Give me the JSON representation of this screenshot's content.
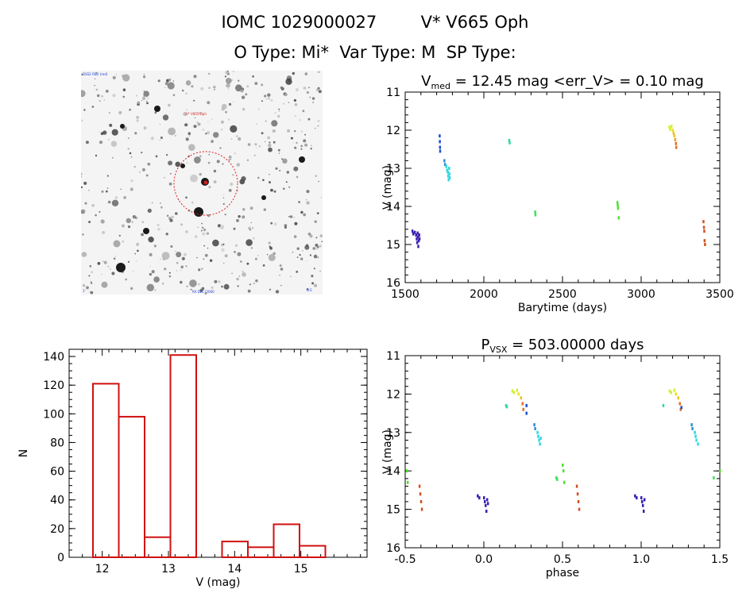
{
  "header": {
    "title_id": "IOMC 1029000027",
    "title_name": "V* V665 Oph",
    "subtitle": "O Type: Mi*  Var Type: M  SP Type:"
  },
  "image_panel": {
    "label_top_left": "DSS2 RED (red)",
    "label_marker": "V* V665 Oph",
    "label_bottom_left": "1'",
    "label_bottom_mid": "RA DEC J2000",
    "label_bottom_right": "N E"
  },
  "chart_data": [
    {
      "id": "lightcurve",
      "type": "scatter",
      "title": "V_med = 12.45 mag <err_V> = 0.10 mag",
      "title_parts": {
        "prefix": "V",
        "sub": "med",
        "rest": " = 12.45 mag <err_V> = 0.10 mag"
      },
      "xlabel": "Barytime (days)",
      "ylabel": "V (mag)",
      "xlim": [
        1500,
        3500
      ],
      "ylim": [
        16,
        11
      ],
      "xticks": [
        1500,
        2000,
        2500,
        3000,
        3500
      ],
      "yticks": [
        11,
        12,
        13,
        14,
        15,
        16
      ],
      "points": [
        {
          "x": 1545,
          "y": 14.65,
          "color": "#3a1fb0"
        },
        {
          "x": 1550,
          "y": 14.72,
          "color": "#3a1fb0"
        },
        {
          "x": 1560,
          "y": 14.68,
          "color": "#3a1fb0"
        },
        {
          "x": 1568,
          "y": 14.75,
          "color": "#3a1fb0"
        },
        {
          "x": 1572,
          "y": 14.85,
          "color": "#3a1fb0"
        },
        {
          "x": 1575,
          "y": 14.95,
          "color": "#3a1fb0"
        },
        {
          "x": 1578,
          "y": 14.7,
          "color": "#3a1fb0"
        },
        {
          "x": 1580,
          "y": 14.8,
          "color": "#3a1fb0"
        },
        {
          "x": 1582,
          "y": 15.05,
          "color": "#3a1fb0"
        },
        {
          "x": 1585,
          "y": 14.9,
          "color": "#3a1fb0"
        },
        {
          "x": 1588,
          "y": 14.75,
          "color": "#3a1fb0"
        },
        {
          "x": 1590,
          "y": 14.85,
          "color": "#3a1fb0"
        },
        {
          "x": 1718,
          "y": 12.15,
          "color": "#1a4fd0"
        },
        {
          "x": 1719,
          "y": 12.3,
          "color": "#1a4fd0"
        },
        {
          "x": 1720,
          "y": 12.45,
          "color": "#1a4fd0"
        },
        {
          "x": 1721,
          "y": 12.55,
          "color": "#1a4fd0"
        },
        {
          "x": 1748,
          "y": 12.8,
          "color": "#2c8fd0"
        },
        {
          "x": 1752,
          "y": 12.9,
          "color": "#2c8fd0"
        },
        {
          "x": 1760,
          "y": 12.95,
          "color": "#30d8e0"
        },
        {
          "x": 1765,
          "y": 13.05,
          "color": "#30d8e0"
        },
        {
          "x": 1770,
          "y": 13.1,
          "color": "#30d8e0"
        },
        {
          "x": 1772,
          "y": 13.2,
          "color": "#30d8e0"
        },
        {
          "x": 1775,
          "y": 13.3,
          "color": "#30d8e0"
        },
        {
          "x": 1778,
          "y": 13.0,
          "color": "#30d8e0"
        },
        {
          "x": 1780,
          "y": 13.15,
          "color": "#30d8e0"
        },
        {
          "x": 1782,
          "y": 13.25,
          "color": "#30d8e0"
        },
        {
          "x": 2160,
          "y": 12.27,
          "color": "#30d8a0"
        },
        {
          "x": 2163,
          "y": 12.33,
          "color": "#30d8a0"
        },
        {
          "x": 2325,
          "y": 14.15,
          "color": "#40e060"
        },
        {
          "x": 2327,
          "y": 14.22,
          "color": "#40e060"
        },
        {
          "x": 2848,
          "y": 13.9,
          "color": "#50e030"
        },
        {
          "x": 2850,
          "y": 13.98,
          "color": "#50e030"
        },
        {
          "x": 2852,
          "y": 14.05,
          "color": "#50e030"
        },
        {
          "x": 2856,
          "y": 14.3,
          "color": "#50e030"
        },
        {
          "x": 3178,
          "y": 11.92,
          "color": "#d0f030"
        },
        {
          "x": 3184,
          "y": 11.98,
          "color": "#d0f030"
        },
        {
          "x": 3192,
          "y": 11.9,
          "color": "#d0f030"
        },
        {
          "x": 3200,
          "y": 12.0,
          "color": "#e8e020"
        },
        {
          "x": 3205,
          "y": 12.08,
          "color": "#f0c020"
        },
        {
          "x": 3210,
          "y": 12.15,
          "color": "#f0c020"
        },
        {
          "x": 3215,
          "y": 12.25,
          "color": "#f0a020"
        },
        {
          "x": 3220,
          "y": 12.35,
          "color": "#e07020"
        },
        {
          "x": 3222,
          "y": 12.45,
          "color": "#e07020"
        },
        {
          "x": 3395,
          "y": 14.4,
          "color": "#d05020"
        },
        {
          "x": 3398,
          "y": 14.55,
          "color": "#d05020"
        },
        {
          "x": 3400,
          "y": 14.65,
          "color": "#d05020"
        },
        {
          "x": 3402,
          "y": 14.9,
          "color": "#d05020"
        },
        {
          "x": 3405,
          "y": 15.0,
          "color": "#d05020"
        }
      ]
    },
    {
      "id": "phased",
      "type": "scatter",
      "title": "P_VSX = 503.00000 days",
      "title_parts": {
        "prefix": "P",
        "sub": "VSX",
        "rest": " = 503.00000 days"
      },
      "xlabel": "phase",
      "ylabel": "V (mag)",
      "xlim": [
        -0.5,
        1.5
      ],
      "ylim": [
        16,
        11
      ],
      "xticks": [
        -0.5,
        0.0,
        0.5,
        1.0,
        1.5
      ],
      "ytick_labels": [
        "11",
        "12",
        "13",
        "14",
        "15",
        "16"
      ],
      "xtick_labels": [
        "-0.5",
        "0.0",
        "0.5",
        "1.0",
        "1.5"
      ],
      "yticks": [
        11,
        12,
        13,
        14,
        15,
        16
      ],
      "points": [
        {
          "x": -0.04,
          "y": 14.65,
          "color": "#3a1fb0"
        },
        {
          "x": -0.03,
          "y": 14.7,
          "color": "#3a1fb0"
        },
        {
          "x": 0.0,
          "y": 14.7,
          "color": "#3a1fb0"
        },
        {
          "x": 0.005,
          "y": 14.8,
          "color": "#3a1fb0"
        },
        {
          "x": 0.01,
          "y": 14.9,
          "color": "#3a1fb0"
        },
        {
          "x": 0.015,
          "y": 15.05,
          "color": "#3a1fb0"
        },
        {
          "x": 0.02,
          "y": 14.75,
          "color": "#3a1fb0"
        },
        {
          "x": 0.025,
          "y": 14.85,
          "color": "#3a1fb0"
        },
        {
          "x": 0.14,
          "y": 12.3,
          "color": "#30d8a0"
        },
        {
          "x": 0.145,
          "y": 12.33,
          "color": "#30d8a0"
        },
        {
          "x": 0.18,
          "y": 11.92,
          "color": "#d0f030"
        },
        {
          "x": 0.19,
          "y": 11.96,
          "color": "#d0f030"
        },
        {
          "x": 0.21,
          "y": 11.9,
          "color": "#d0f030"
        },
        {
          "x": 0.22,
          "y": 12.0,
          "color": "#e8e020"
        },
        {
          "x": 0.235,
          "y": 12.1,
          "color": "#f0c020"
        },
        {
          "x": 0.245,
          "y": 12.25,
          "color": "#e07020"
        },
        {
          "x": 0.25,
          "y": 12.4,
          "color": "#e07020"
        },
        {
          "x": 0.27,
          "y": 12.3,
          "color": "#1a4fd0"
        },
        {
          "x": 0.27,
          "y": 12.5,
          "color": "#1a4fd0"
        },
        {
          "x": 0.32,
          "y": 12.8,
          "color": "#2c8fd0"
        },
        {
          "x": 0.325,
          "y": 12.9,
          "color": "#2c8fd0"
        },
        {
          "x": 0.34,
          "y": 13.0,
          "color": "#30d8e0"
        },
        {
          "x": 0.345,
          "y": 13.1,
          "color": "#30d8e0"
        },
        {
          "x": 0.35,
          "y": 13.2,
          "color": "#30d8e0"
        },
        {
          "x": 0.355,
          "y": 13.3,
          "color": "#30d8e0"
        },
        {
          "x": 0.36,
          "y": 13.15,
          "color": "#30d8e0"
        },
        {
          "x": 0.46,
          "y": 14.18,
          "color": "#40e060"
        },
        {
          "x": 0.465,
          "y": 14.22,
          "color": "#40e060"
        },
        {
          "x": 0.5,
          "y": 13.85,
          "color": "#50e030"
        },
        {
          "x": 0.505,
          "y": 14.0,
          "color": "#50e030"
        },
        {
          "x": 0.51,
          "y": 14.3,
          "color": "#50e030"
        },
        {
          "x": 0.59,
          "y": 14.4,
          "color": "#d05020"
        },
        {
          "x": 0.595,
          "y": 14.6,
          "color": "#d05020"
        },
        {
          "x": 0.6,
          "y": 14.8,
          "color": "#d05020"
        },
        {
          "x": 0.605,
          "y": 15.0,
          "color": "#d05020"
        },
        {
          "x": -0.41,
          "y": 14.4,
          "color": "#d05020"
        },
        {
          "x": -0.405,
          "y": 14.6,
          "color": "#d05020"
        },
        {
          "x": -0.4,
          "y": 14.8,
          "color": "#d05020"
        },
        {
          "x": -0.395,
          "y": 15.0,
          "color": "#d05020"
        },
        {
          "x": -0.49,
          "y": 14.0,
          "color": "#50e030"
        },
        {
          "x": -0.485,
          "y": 14.3,
          "color": "#50e030"
        },
        {
          "x": 0.96,
          "y": 14.65,
          "color": "#3a1fb0"
        },
        {
          "x": 0.97,
          "y": 14.7,
          "color": "#3a1fb0"
        },
        {
          "x": 1.0,
          "y": 14.7,
          "color": "#3a1fb0"
        },
        {
          "x": 1.005,
          "y": 14.8,
          "color": "#3a1fb0"
        },
        {
          "x": 1.01,
          "y": 14.9,
          "color": "#3a1fb0"
        },
        {
          "x": 1.015,
          "y": 15.05,
          "color": "#3a1fb0"
        },
        {
          "x": 1.02,
          "y": 14.75,
          "color": "#3a1fb0"
        },
        {
          "x": 1.14,
          "y": 12.3,
          "color": "#30d8a0"
        },
        {
          "x": 1.18,
          "y": 11.92,
          "color": "#d0f030"
        },
        {
          "x": 1.19,
          "y": 11.96,
          "color": "#d0f030"
        },
        {
          "x": 1.21,
          "y": 11.9,
          "color": "#d0f030"
        },
        {
          "x": 1.22,
          "y": 12.0,
          "color": "#e8e020"
        },
        {
          "x": 1.235,
          "y": 12.1,
          "color": "#f0c020"
        },
        {
          "x": 1.245,
          "y": 12.25,
          "color": "#e07020"
        },
        {
          "x": 1.25,
          "y": 12.4,
          "color": "#e07020"
        },
        {
          "x": 1.255,
          "y": 12.35,
          "color": "#1a4fd0"
        },
        {
          "x": 1.32,
          "y": 12.8,
          "color": "#2c8fd0"
        },
        {
          "x": 1.325,
          "y": 12.9,
          "color": "#2c8fd0"
        },
        {
          "x": 1.34,
          "y": 13.0,
          "color": "#30d8e0"
        },
        {
          "x": 1.345,
          "y": 13.1,
          "color": "#30d8e0"
        },
        {
          "x": 1.35,
          "y": 13.2,
          "color": "#30d8e0"
        },
        {
          "x": 1.36,
          "y": 13.3,
          "color": "#30d8e0"
        },
        {
          "x": 1.46,
          "y": 14.18,
          "color": "#40e060"
        },
        {
          "x": 1.5,
          "y": 14.0,
          "color": "#50e030"
        }
      ]
    },
    {
      "id": "histogram",
      "type": "bar",
      "title": "",
      "xlabel": "V (mag)",
      "ylabel": "N",
      "xlim": [
        11.5,
        16.0
      ],
      "ylim": [
        0,
        145
      ],
      "xticks": [
        12,
        13,
        14,
        15
      ],
      "yticks": [
        0,
        20,
        40,
        60,
        80,
        100,
        120,
        140
      ],
      "bin_width": 0.39,
      "bins": [
        {
          "start": 11.86,
          "value": 121
        },
        {
          "start": 12.25,
          "value": 98
        },
        {
          "start": 12.64,
          "value": 14
        },
        {
          "start": 13.03,
          "value": 141
        },
        {
          "start": 13.42,
          "value": 0
        },
        {
          "start": 13.81,
          "value": 11
        },
        {
          "start": 14.2,
          "value": 7
        },
        {
          "start": 14.59,
          "value": 23
        },
        {
          "start": 14.98,
          "value": 8
        }
      ],
      "bar_color": "#d01010"
    }
  ]
}
